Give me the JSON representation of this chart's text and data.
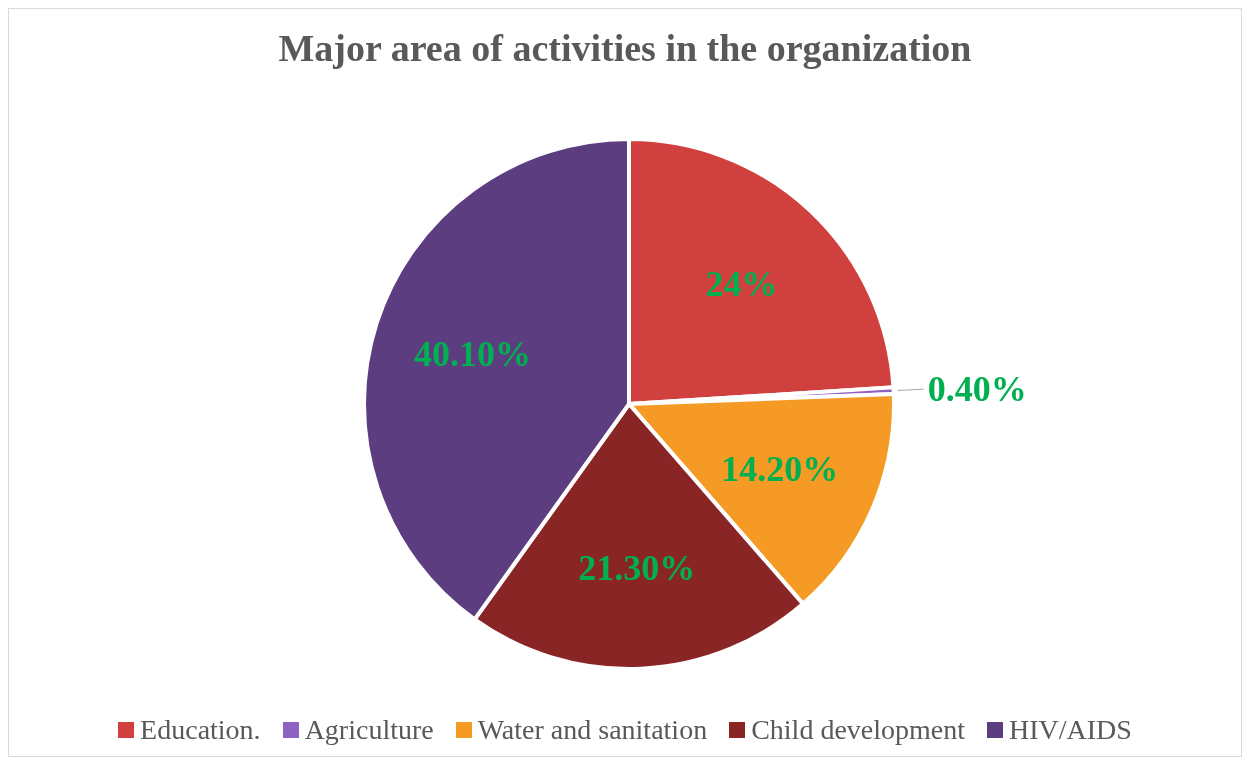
{
  "chart_data": {
    "type": "pie",
    "title": "Major area of activities in the organization",
    "categories": [
      "Education.",
      "Agriculture",
      "Water and sanitation",
      "Child development",
      "HIV/AIDS"
    ],
    "values": [
      24,
      0.4,
      14.2,
      21.3,
      40.1
    ],
    "value_labels": [
      "24%",
      "0.40%",
      "14.20%",
      "21.30%",
      "40.10%"
    ],
    "colors": [
      "#d0403e",
      "#8e62c2",
      "#f59b25",
      "#8a2525",
      "#5b3d80"
    ],
    "legend": "bottom"
  }
}
